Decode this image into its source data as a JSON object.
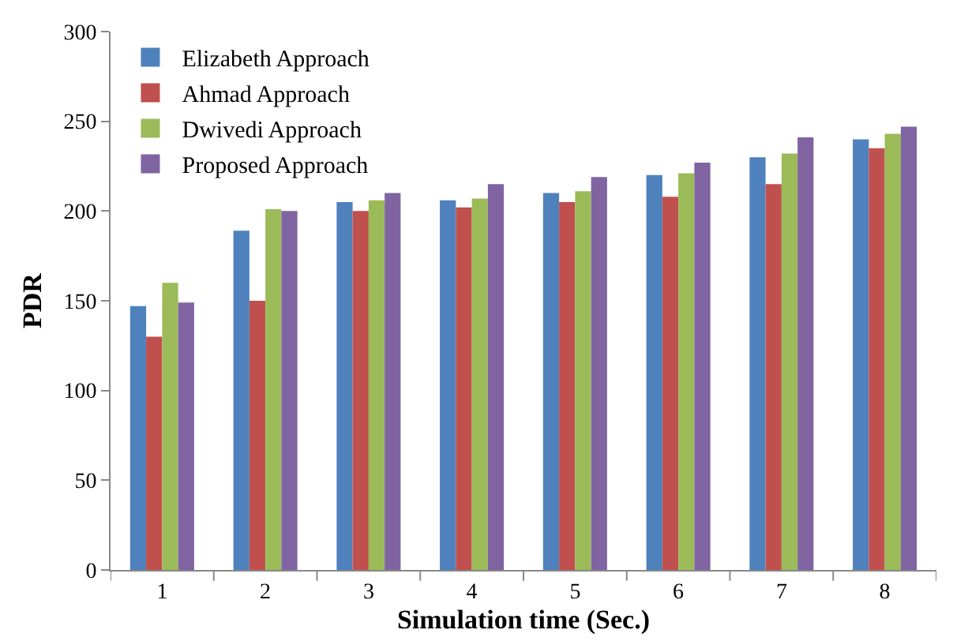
{
  "chart_data": {
    "type": "bar",
    "xlabel": "Simulation time (Sec.)",
    "ylabel": "PDR",
    "categories": [
      "1",
      "2",
      "3",
      "4",
      "5",
      "6",
      "7",
      "8"
    ],
    "series": [
      {
        "name": "Elizabeth Approach",
        "color": "#4f81bd",
        "values": [
          147,
          189,
          205,
          206,
          210,
          220,
          230,
          240
        ]
      },
      {
        "name": "Ahmad Approach",
        "color": "#c0504d",
        "values": [
          130,
          150,
          200,
          202,
          205,
          208,
          215,
          235
        ]
      },
      {
        "name": "Dwivedi Approach",
        "color": "#9bbb59",
        "values": [
          160,
          201,
          206,
          207,
          211,
          221,
          232,
          243
        ]
      },
      {
        "name": "Proposed Approach",
        "color": "#8064a2",
        "values": [
          149,
          200,
          210,
          215,
          219,
          227,
          241,
          247
        ]
      }
    ],
    "ylim": [
      0,
      300
    ],
    "yticks": [
      0,
      50,
      100,
      150,
      200,
      250,
      300
    ],
    "grid": false,
    "legend": "top left"
  }
}
